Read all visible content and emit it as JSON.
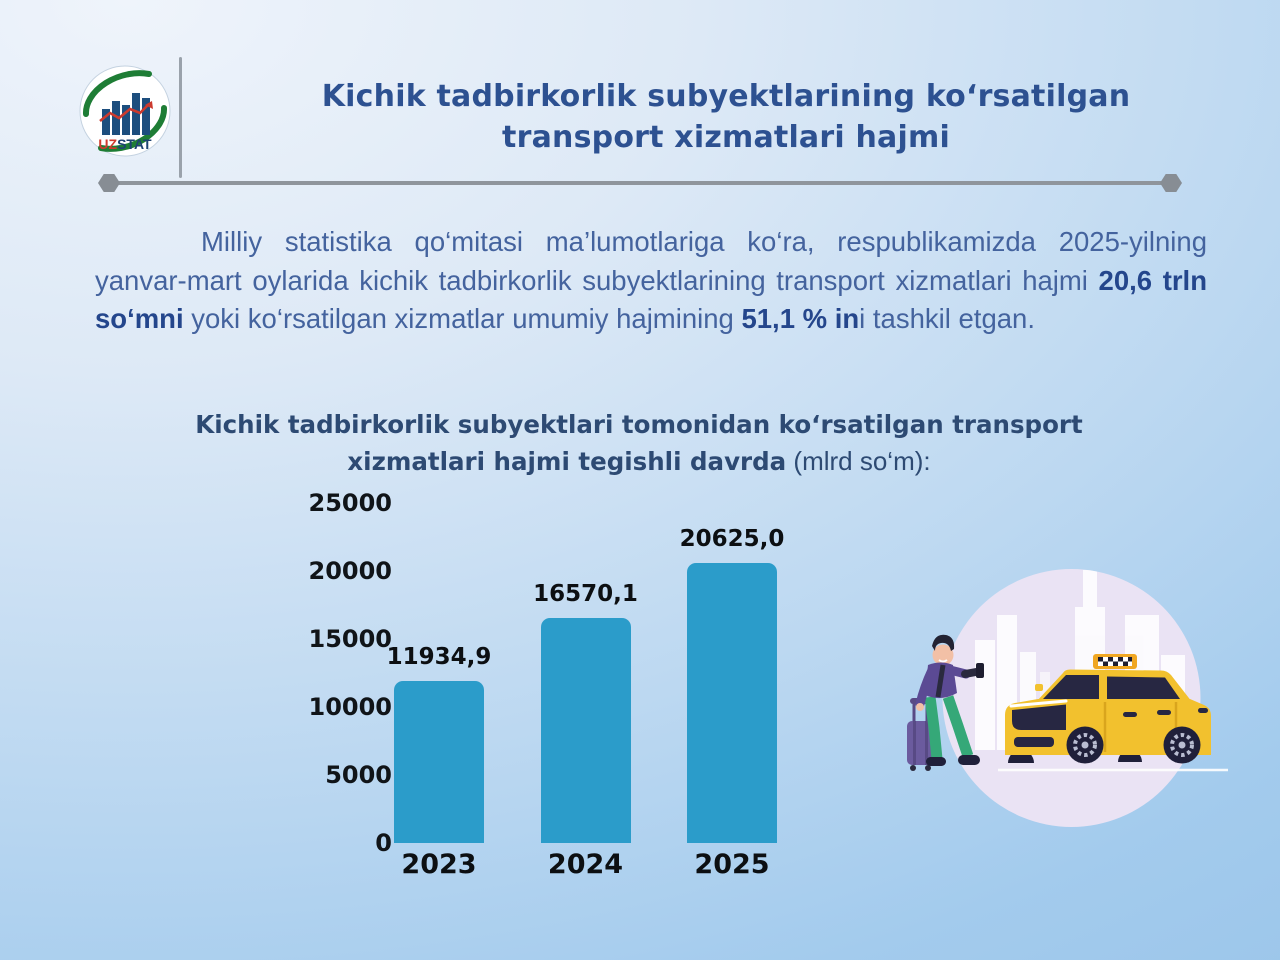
{
  "colors": {
    "background_top": "#eff4fb",
    "background_bottom": "#9cc6ea",
    "title_blue": "#2d5191",
    "paragraph_blue": "#44639e",
    "subtitle_navy": "#2d4a73",
    "bar_blue": "#2b9cca",
    "label_black": "#0c0f12",
    "rule_gray": "#8f959c",
    "logo_green": "#1e7d35",
    "logo_navy": "#1d4e7e",
    "logo_red": "#d03a2e",
    "taxi_yellow": "#f2c12e",
    "illustration_lavender": "#eae3f4",
    "person_purple": "#5b4a94",
    "pants_green": "#35a878"
  },
  "header": {
    "logo": {
      "uz": "UZ",
      "stat": "STAT"
    },
    "title_line1": "Kichik tadbirkorlik subyektlarining ko‘rsatilgan",
    "title_line2": "transport xizmatlari hajmi"
  },
  "paragraph": {
    "segments": [
      {
        "text": "Milliy statistika qo‘mitasi ma’lumotlariga ko‘ra, respublikamizda 2025-yilning yanvar-mart oylarida kichik tadbirkorlik subyektlarining transport xizmatlari hajmi ",
        "bold": false
      },
      {
        "text": "20,6 trln so‘mni",
        "bold": true
      },
      {
        "text": " yoki ko‘rsatilgan xizmatlar umumiy hajmining ",
        "bold": false
      },
      {
        "text": "51,1 % in",
        "bold": true
      },
      {
        "text": "i tashkil etgan.",
        "bold": false
      }
    ]
  },
  "chart_title": {
    "line1": "Kichik tadbirkorlik subyektlari tomonidan ko‘rsatilgan transport",
    "line2_bold": "xizmatlari hajmi tegishli davrda",
    "line2_normal": " (mlrd so‘m):"
  },
  "chart_data": {
    "type": "bar",
    "title": "Kichik tadbirkorlik subyektlari tomonidan ko‘rsatilgan transport xizmatlari hajmi tegishli davrda (mlrd so‘m)",
    "categories": [
      "2023",
      "2024",
      "2025"
    ],
    "values": [
      11934.9,
      16570.1,
      20625.0
    ],
    "value_labels": [
      "11934,9",
      "16570,1",
      "20625,0"
    ],
    "yticks": [
      0,
      5000,
      10000,
      15000,
      20000,
      25000
    ],
    "ylim": [
      0,
      25000
    ],
    "xlabel": "",
    "ylabel": "",
    "unit": "mlrd so‘m",
    "grid": false,
    "legend_position": "none",
    "bar_color": "#2b9cca"
  }
}
